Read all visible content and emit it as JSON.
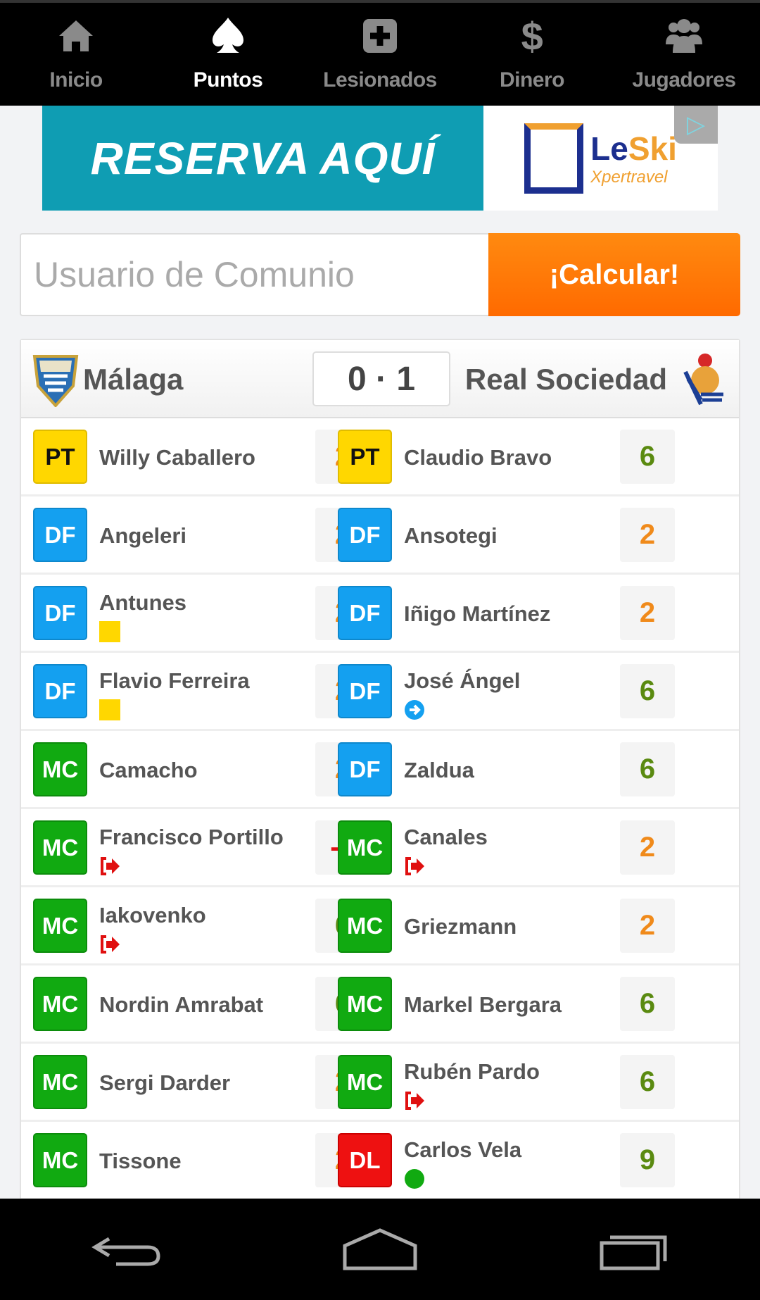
{
  "nav": {
    "items": [
      {
        "label": "Inicio",
        "icon": "home-icon",
        "active": false
      },
      {
        "label": "Puntos",
        "icon": "spade-icon",
        "active": true
      },
      {
        "label": "Lesionados",
        "icon": "medical-plus-icon",
        "active": false
      },
      {
        "label": "Dinero",
        "icon": "dollar-icon",
        "active": false
      },
      {
        "label": "Jugadores",
        "icon": "users-icon",
        "active": false
      }
    ]
  },
  "ad": {
    "headline": "RESERVA AQUÍ",
    "brand_a": "Le",
    "brand_b": "Ski",
    "brand_sub": "Xpertravel"
  },
  "search": {
    "placeholder": "Usuario de Comunio",
    "button": "¡Calcular!"
  },
  "match": {
    "home": "Málaga",
    "away": "Real Sociedad",
    "score": "0 · 1"
  },
  "colors": {
    "PT": "#ffd700",
    "DF": "#14a0f0",
    "MC": "#11aa11",
    "DL": "#ee1111",
    "points_low": "#f08a1a",
    "points_high": "#5a8a10",
    "points_negative": "#e01010"
  },
  "rows": [
    {
      "home": {
        "pos": "PT",
        "name": "Willy Caballero",
        "points": "2",
        "status": ""
      },
      "away": {
        "pos": "PT",
        "name": "Claudio Bravo",
        "points": "6",
        "status": ""
      }
    },
    {
      "home": {
        "pos": "DF",
        "name": "Angeleri",
        "points": "2",
        "status": ""
      },
      "away": {
        "pos": "DF",
        "name": "Ansotegi",
        "points": "2",
        "status": ""
      }
    },
    {
      "home": {
        "pos": "DF",
        "name": "Antunes",
        "points": "2",
        "status": "yellow-card"
      },
      "away": {
        "pos": "DF",
        "name": "Iñigo Martínez",
        "points": "2",
        "status": ""
      }
    },
    {
      "home": {
        "pos": "DF",
        "name": "Flavio Ferreira",
        "points": "2",
        "status": "yellow-card"
      },
      "away": {
        "pos": "DF",
        "name": "José Ángel",
        "points": "6",
        "status": "sub-in"
      }
    },
    {
      "home": {
        "pos": "MC",
        "name": "Camacho",
        "points": "2",
        "status": ""
      },
      "away": {
        "pos": "DF",
        "name": "Zaldua",
        "points": "6",
        "status": ""
      }
    },
    {
      "home": {
        "pos": "MC",
        "name": "Francisco Portillo",
        "points": "-2",
        "status": "sub-out"
      },
      "away": {
        "pos": "MC",
        "name": "Canales",
        "points": "2",
        "status": "sub-out"
      }
    },
    {
      "home": {
        "pos": "MC",
        "name": "Iakovenko",
        "points": "6",
        "status": "sub-out"
      },
      "away": {
        "pos": "MC",
        "name": "Griezmann",
        "points": "2",
        "status": ""
      }
    },
    {
      "home": {
        "pos": "MC",
        "name": "Nordin Amrabat",
        "points": "6",
        "status": ""
      },
      "away": {
        "pos": "MC",
        "name": "Markel Bergara",
        "points": "6",
        "status": ""
      }
    },
    {
      "home": {
        "pos": "MC",
        "name": "Sergi Darder",
        "points": "2",
        "status": ""
      },
      "away": {
        "pos": "MC",
        "name": "Rubén Pardo",
        "points": "6",
        "status": "sub-out"
      }
    },
    {
      "home": {
        "pos": "MC",
        "name": "Tissone",
        "points": "2",
        "status": ""
      },
      "away": {
        "pos": "DL",
        "name": "Carlos Vela",
        "points": "9",
        "status": "goal"
      }
    }
  ],
  "system_nav": {
    "items": [
      "back-icon",
      "home-icon",
      "recent-apps-icon"
    ]
  }
}
